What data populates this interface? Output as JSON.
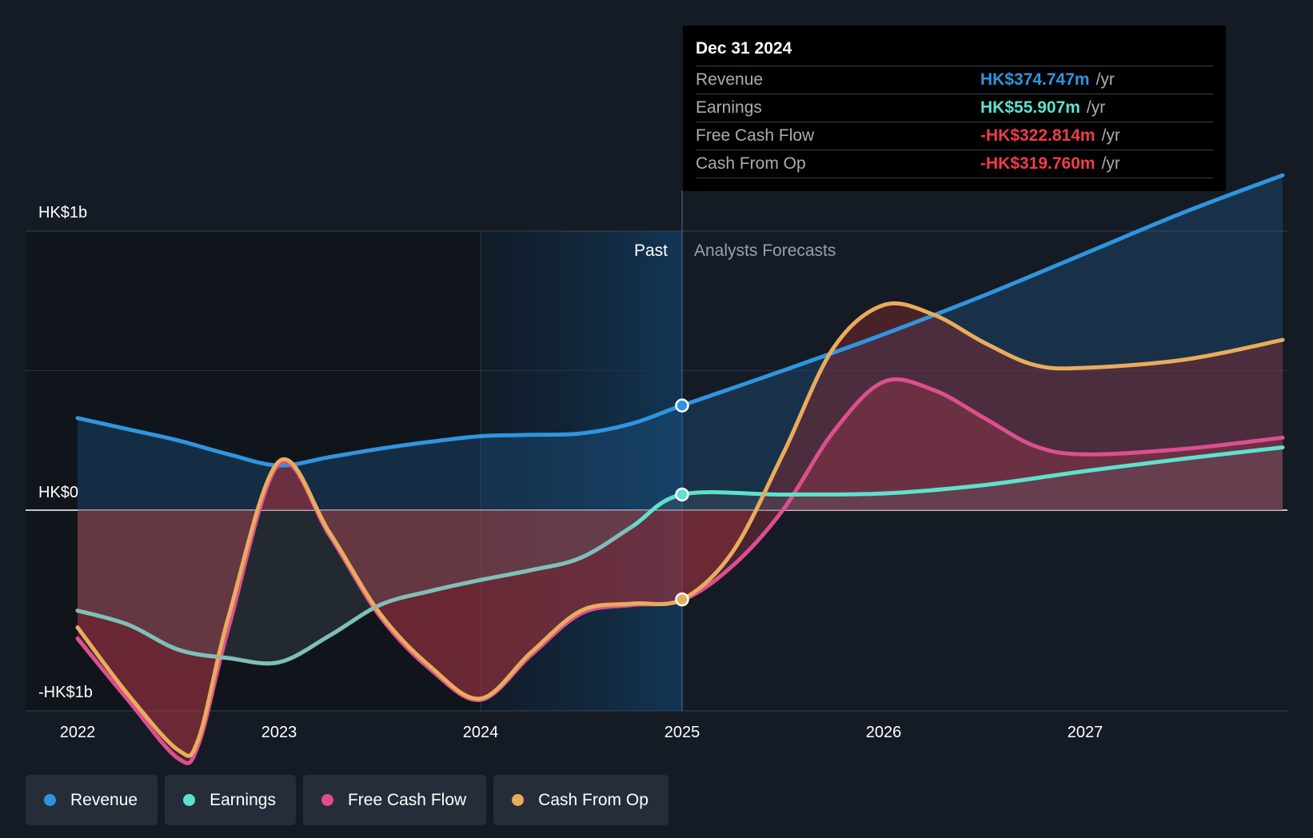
{
  "chart_data": {
    "type": "line",
    "title": "",
    "x_ticks": [
      "2022",
      "2023",
      "2024",
      "2025",
      "2026",
      "2027"
    ],
    "y_ticks": [
      {
        "value": 1000,
        "label": "HK$1b"
      },
      {
        "value": 0,
        "label": "HK$0"
      },
      {
        "value": -1000,
        "label": "-HK$1b"
      }
    ],
    "ylim": [
      -1000,
      1000
    ],
    "xlim": [
      2021.75,
      2027.98
    ],
    "units": "HK$ millions",
    "past_label": "Past",
    "forecast_label": "Analysts Forecasts",
    "past_region_start": 2024.0,
    "divider_x": 2025.0,
    "series": [
      {
        "name": "Revenue",
        "color": "#2f95e0",
        "x": [
          2022.0,
          2022.25,
          2022.5,
          2022.75,
          2023.0,
          2023.25,
          2023.5,
          2023.75,
          2024.0,
          2024.25,
          2024.5,
          2024.75,
          2025.0,
          2025.5,
          2026.0,
          2026.5,
          2027.0,
          2027.5,
          2027.98
        ],
        "y": [
          330,
          290,
          250,
          200,
          160,
          190,
          220,
          245,
          265,
          270,
          275,
          310,
          375,
          500,
          630,
          770,
          920,
          1070,
          1200
        ]
      },
      {
        "name": "Earnings",
        "color": "#5de2cf",
        "x": [
          2022.0,
          2022.25,
          2022.5,
          2022.75,
          2023.0,
          2023.25,
          2023.5,
          2023.75,
          2024.0,
          2024.25,
          2024.5,
          2024.75,
          2025.0,
          2025.5,
          2026.0,
          2026.5,
          2027.0,
          2027.5,
          2027.98
        ],
        "y": [
          -360,
          -410,
          -500,
          -530,
          -545,
          -450,
          -340,
          -290,
          -250,
          -215,
          -170,
          -60,
          56,
          56,
          60,
          90,
          140,
          185,
          225
        ]
      },
      {
        "name": "Free Cash Flow",
        "color": "#dc4f8f",
        "x": [
          2022.0,
          2022.25,
          2022.5,
          2022.6,
          2022.75,
          2023.0,
          2023.25,
          2023.5,
          2023.75,
          2024.0,
          2024.25,
          2024.5,
          2024.75,
          2025.0,
          2025.25,
          2025.5,
          2025.75,
          2026.0,
          2026.25,
          2026.5,
          2026.75,
          2027.0,
          2027.5,
          2027.98
        ],
        "y": [
          -460,
          -680,
          -890,
          -840,
          -420,
          165,
          -90,
          -380,
          -570,
          -680,
          -520,
          -370,
          -340,
          -323,
          -200,
          0,
          280,
          460,
          430,
          330,
          230,
          200,
          220,
          260
        ]
      },
      {
        "name": "Cash From Op",
        "color": "#e8ac5c",
        "x": [
          2022.0,
          2022.25,
          2022.5,
          2022.6,
          2022.75,
          2023.0,
          2023.25,
          2023.5,
          2023.75,
          2024.0,
          2024.25,
          2024.5,
          2024.75,
          2025.0,
          2025.25,
          2025.5,
          2025.75,
          2026.0,
          2026.25,
          2026.5,
          2026.75,
          2027.0,
          2027.5,
          2027.98
        ],
        "y": [
          -420,
          -660,
          -860,
          -820,
          -380,
          175,
          -80,
          -370,
          -560,
          -675,
          -510,
          -360,
          -335,
          -320,
          -150,
          200,
          580,
          735,
          700,
          600,
          520,
          510,
          540,
          610
        ]
      }
    ],
    "highlight_x": 2025.0
  },
  "tooltip": {
    "date": "Dec 31 2024",
    "rows": [
      {
        "name": "Revenue",
        "value": "HK$374.747m",
        "unit": "/yr",
        "color": "#2f95e0"
      },
      {
        "name": "Earnings",
        "value": "HK$55.907m",
        "unit": "/yr",
        "color": "#5de2cf"
      },
      {
        "name": "Free Cash Flow",
        "value": "-HK$322.814m",
        "unit": "/yr",
        "color": "#ef3e46"
      },
      {
        "name": "Cash From Op",
        "value": "-HK$319.760m",
        "unit": "/yr",
        "color": "#ef3e46"
      }
    ]
  },
  "legend": [
    {
      "label": "Revenue",
      "color": "#2f95e0"
    },
    {
      "label": "Earnings",
      "color": "#5de2cf"
    },
    {
      "label": "Free Cash Flow",
      "color": "#dc4f8f"
    },
    {
      "label": "Cash From Op",
      "color": "#e8ac5c"
    }
  ]
}
